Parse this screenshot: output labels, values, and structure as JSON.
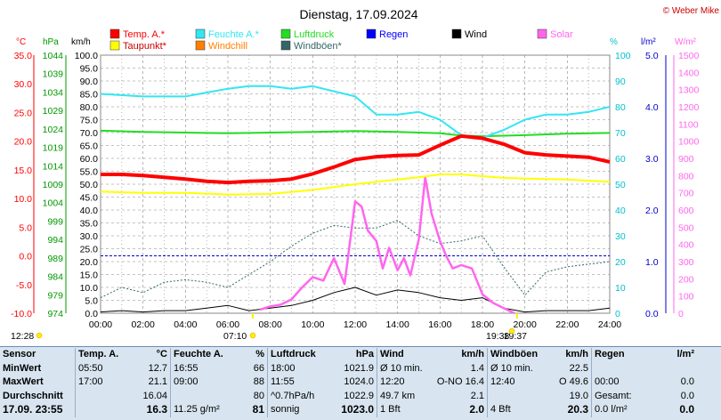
{
  "title": "Dienstag, 17.09.2024",
  "copyright": "© Weber Mike",
  "axes_units": {
    "temp": "°C",
    "pressure": "hPa",
    "speed": "km/h",
    "humidity": "%",
    "rain": "l/m²",
    "solar": "W/m²"
  },
  "legend": [
    {
      "label": "Temp. A.*",
      "color": "#ff0000"
    },
    {
      "label": "Feuchte A.*",
      "color": "#33e6f2"
    },
    {
      "label": "Luftdruck",
      "color": "#22dd22"
    },
    {
      "label": "Regen",
      "color": "#0000ff"
    },
    {
      "label": "Wind",
      "color": "#000000"
    },
    {
      "label": "Solar",
      "color": "#ff66ee"
    },
    {
      "label": "Taupunkt*",
      "color": "#ffff00"
    },
    {
      "label": "Windchill",
      "color": "#ff8000"
    },
    {
      "label": "Windböen*",
      "color": "#336666"
    }
  ],
  "chart_data": {
    "type": "line",
    "x_ticks": [
      "00:00",
      "02:00",
      "04:00",
      "06:00",
      "08:00",
      "10:00",
      "12:00",
      "14:00",
      "16:00",
      "18:00",
      "20:00",
      "22:00",
      "24:00"
    ],
    "axes": {
      "temp": {
        "ticks": [
          "35.0",
          "30.0",
          "25.0",
          "20.0",
          "15.0",
          "10.0",
          "5.0",
          "0.0",
          "-5.0",
          "-10.0"
        ],
        "range": [
          -10,
          35
        ]
      },
      "pressure": {
        "ticks": [
          "1044",
          "1039",
          "1034",
          "1029",
          "1024",
          "1019",
          "1014",
          "1009",
          "1004",
          "999",
          "994",
          "989",
          "984",
          "979",
          "974"
        ],
        "range": [
          974,
          1044
        ]
      },
      "speed": {
        "ticks": [
          "100.0",
          "95.0",
          "90.0",
          "85.0",
          "80.0",
          "75.0",
          "70.0",
          "65.0",
          "60.0",
          "55.0",
          "50.0",
          "45.0",
          "40.0",
          "35.0",
          "30.0",
          "25.0",
          "20.0",
          "15.0",
          "10.0",
          "5.0",
          "0.0"
        ],
        "range": [
          0,
          100
        ]
      },
      "humidity": {
        "ticks": [
          "100",
          "90",
          "80",
          "70",
          "60",
          "50",
          "40",
          "30",
          "20",
          "10",
          "0"
        ],
        "range": [
          0,
          100
        ]
      },
      "rain": {
        "ticks": [
          "5.0",
          "4.0",
          "3.0",
          "2.0",
          "1.0",
          "0.0"
        ],
        "range": [
          0,
          5
        ]
      },
      "solar": {
        "ticks": [
          "1500",
          "1400",
          "1300",
          "1200",
          "1100",
          "1000",
          "900",
          "800",
          "700",
          "600",
          "500",
          "400",
          "300",
          "200",
          "100",
          "0"
        ],
        "range": [
          0,
          1500
        ]
      }
    },
    "series": [
      {
        "name": "Temp. A.*",
        "axis": "temp",
        "x": [
          0,
          1,
          2,
          3,
          4,
          5,
          6,
          7,
          8,
          9,
          10,
          11,
          12,
          13,
          14,
          15,
          16,
          17,
          18,
          19,
          20,
          21,
          22,
          23,
          24
        ],
        "values": [
          14.2,
          14.2,
          14.0,
          13.7,
          13.4,
          13.0,
          12.8,
          13.0,
          13.1,
          13.4,
          14.3,
          15.5,
          16.8,
          17.3,
          17.5,
          17.6,
          19.3,
          20.9,
          20.5,
          19.5,
          18.0,
          17.6,
          17.4,
          17.2,
          16.4
        ]
      },
      {
        "name": "Taupunkt*",
        "axis": "temp",
        "x": [
          0,
          2,
          4,
          6,
          8,
          10,
          11,
          12,
          13,
          14,
          15,
          16,
          17,
          18,
          19,
          20,
          22,
          24
        ],
        "values": [
          11.2,
          11.0,
          11.0,
          10.7,
          10.8,
          11.5,
          12.0,
          12.5,
          12.9,
          13.3,
          13.7,
          14.2,
          14.2,
          13.9,
          13.6,
          13.5,
          13.3,
          12.9
        ]
      },
      {
        "name": "Feuchte A.*",
        "axis": "humidity",
        "x": [
          0,
          2,
          4,
          6,
          7,
          8,
          9,
          10,
          11,
          12,
          13,
          14,
          15,
          16,
          17,
          18,
          19,
          20,
          21,
          22,
          23,
          24
        ],
        "values": [
          85,
          84,
          84,
          87,
          88,
          88,
          87,
          88,
          86,
          84,
          77,
          77,
          78,
          75,
          69,
          68,
          71,
          75,
          77,
          77,
          78,
          80
        ]
      },
      {
        "name": "Luftdruck",
        "axis": "pressure",
        "x": [
          0,
          2,
          4,
          6,
          8,
          10,
          12,
          14,
          16,
          17,
          18,
          20,
          22,
          24
        ],
        "values": [
          1023.5,
          1023.2,
          1023.0,
          1022.8,
          1023.0,
          1023.2,
          1023.4,
          1023.2,
          1022.8,
          1022.2,
          1022.0,
          1022.3,
          1022.7,
          1022.9
        ]
      },
      {
        "name": "Solar",
        "axis": "solar",
        "x": [
          7.5,
          8,
          8.5,
          9,
          9.5,
          10,
          10.5,
          11,
          11.5,
          12,
          12.3,
          12.6,
          13,
          13.3,
          13.6,
          14,
          14.3,
          14.6,
          15,
          15.3,
          15.6,
          16,
          16.3,
          16.6,
          17,
          17.5,
          18,
          18.5,
          19,
          19.5
        ],
        "values": [
          20,
          40,
          50,
          80,
          150,
          210,
          190,
          320,
          170,
          650,
          620,
          480,
          420,
          260,
          380,
          250,
          320,
          220,
          430,
          790,
          580,
          420,
          330,
          260,
          280,
          260,
          110,
          60,
          30,
          0
        ]
      },
      {
        "name": "Windböen*",
        "axis": "speed",
        "x": [
          0,
          1,
          2,
          3,
          4,
          5,
          6,
          7,
          8,
          9,
          10,
          11,
          12,
          13,
          14,
          15,
          16,
          17,
          18,
          19,
          20,
          21,
          22,
          23,
          24
        ],
        "values": [
          6,
          10,
          8,
          12,
          13,
          12,
          10,
          15,
          20,
          26,
          31,
          34,
          33,
          33,
          36,
          30,
          27,
          28,
          30,
          18,
          7,
          16,
          18,
          19,
          20
        ]
      },
      {
        "name": "Wind",
        "axis": "speed",
        "x": [
          0,
          1,
          2,
          3,
          4,
          5,
          6,
          7,
          8,
          9,
          10,
          11,
          12,
          13,
          14,
          15,
          16,
          17,
          18,
          19,
          20,
          21,
          22,
          23,
          24
        ],
        "values": [
          0.5,
          1,
          0.5,
          1,
          1,
          2,
          3,
          1,
          2,
          3,
          5,
          8,
          10,
          7,
          9,
          8,
          6,
          5,
          6,
          2,
          0.5,
          1,
          1,
          1,
          2
        ]
      }
    ],
    "markers": [
      {
        "label": "12:28",
        "color": "#ffee00"
      },
      {
        "label": "07:10",
        "color": "#ffee00"
      },
      {
        "label": "19:38",
        "color": "#ffee00"
      },
      {
        "label": "19:37",
        "color": "#ffee00"
      }
    ]
  },
  "stats": {
    "headers": [
      [
        "Sensor",
        "",
        ""
      ],
      [
        "Temp. A.",
        "°C"
      ],
      [
        "Feuchte A.",
        "%"
      ],
      [
        "Luftdruck",
        "hPa"
      ],
      [
        "Wind",
        "km/h"
      ],
      [
        "Windböen",
        "km/h"
      ],
      [
        "Regen",
        "l/m²"
      ]
    ],
    "rows": [
      [
        "MinWert",
        "05:50",
        "12.7",
        "16:55",
        "66",
        "18:00",
        "1021.9",
        "Ø 10 min.",
        "1.4",
        "Ø 10 min.",
        "22.5",
        "",
        ""
      ],
      [
        "MaxWert",
        "17:00",
        "21.1",
        "09:00",
        "88",
        "11:55",
        "1024.0",
        "12:20",
        "O-NO 16.4",
        "12:40",
        "O 49.6",
        "00:00",
        "0.0"
      ],
      [
        "Durchschnitt",
        "",
        "16.04",
        "",
        "80",
        "^0.7hPa/h",
        "1022.9",
        "49.7 km",
        "2.1",
        "",
        "19.0",
        "Gesamt:",
        "0.0"
      ],
      [
        "17.09. 23:55",
        "",
        "16.3",
        "11.25 g/m²",
        "81",
        "sonnig",
        "1023.0",
        "1 Bft",
        "2.0",
        "4 Bft",
        "20.3",
        "0.0 l/m²",
        "0.0"
      ]
    ]
  }
}
